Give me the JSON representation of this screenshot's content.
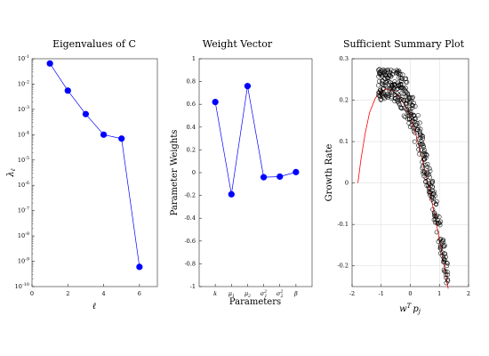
{
  "chart_data": [
    {
      "type": "line",
      "title": "Eigenvalues of C",
      "xlabel": "ℓ",
      "ylabel": "λ",
      "ylabel_sub": "ℓ",
      "yscale": "log",
      "xlim": [
        0,
        7
      ],
      "ylim_exp": [
        -10,
        -1
      ],
      "x_ticks": [
        "0",
        "2",
        "4",
        "6"
      ],
      "x": [
        1,
        2,
        3,
        4,
        5,
        6
      ],
      "y": [
        0.065,
        0.0055,
        0.00065,
        0.0001,
        7e-05,
        6e-10
      ],
      "color": "#0000ff"
    },
    {
      "type": "line",
      "title": "Weight Vector",
      "xlabel": "Parameters",
      "ylabel": "Parameter Weights",
      "ylim": [
        -1,
        1
      ],
      "y_ticks": [
        "-1",
        "-0.8",
        "-0.6",
        "-0.4",
        "-0.2",
        "0",
        "0.2",
        "0.4",
        "0.6",
        "0.8",
        "1"
      ],
      "categories": [
        {
          "base": "k",
          "sub": "",
          "sup": ""
        },
        {
          "base": "μ",
          "sub": "1",
          "sup": ""
        },
        {
          "base": "μ",
          "sub": "2",
          "sup": ""
        },
        {
          "base": "σ",
          "sub": "1",
          "sup": "2"
        },
        {
          "base": "σ",
          "sub": "2",
          "sup": "2"
        },
        {
          "base": "β",
          "sub": "",
          "sup": ""
        }
      ],
      "values": [
        0.62,
        -0.19,
        0.76,
        -0.04,
        -0.035,
        0.005
      ],
      "color": "#0000ff"
    },
    {
      "type": "scatter",
      "title": "Sufficient Summary Plot",
      "xlabel": "w",
      "xlabel_sup": "T",
      "xlabel_rest": "p",
      "xlabel_sub": "j",
      "ylabel": "Growth Rate",
      "xlim": [
        -2,
        2
      ],
      "ylim": [
        -0.25,
        0.3
      ],
      "x_ticks": [
        "-2",
        "-1",
        "0",
        "1",
        "2"
      ],
      "y_ticks": [
        "-0.2",
        "-0.1",
        "0",
        "0.1",
        "0.2",
        "0.3"
      ],
      "grid": true,
      "markers": "open circles",
      "fit_color": "#ff0000",
      "fit_curve": [
        [
          -1.8,
          0.0
        ],
        [
          -1.7,
          0.055
        ],
        [
          -1.55,
          0.12
        ],
        [
          -1.4,
          0.17
        ],
        [
          -1.2,
          0.205
        ],
        [
          -1.0,
          0.222
        ],
        [
          -0.8,
          0.227
        ],
        [
          -0.6,
          0.222
        ],
        [
          -0.4,
          0.21
        ],
        [
          -0.2,
          0.19
        ],
        [
          0.0,
          0.16
        ],
        [
          0.2,
          0.115
        ],
        [
          0.4,
          0.06
        ],
        [
          0.6,
          0.0
        ],
        [
          0.8,
          -0.065
        ],
        [
          1.0,
          -0.135
        ],
        [
          1.1,
          -0.175
        ],
        [
          1.2,
          -0.215
        ],
        [
          1.3,
          -0.255
        ]
      ]
    }
  ]
}
